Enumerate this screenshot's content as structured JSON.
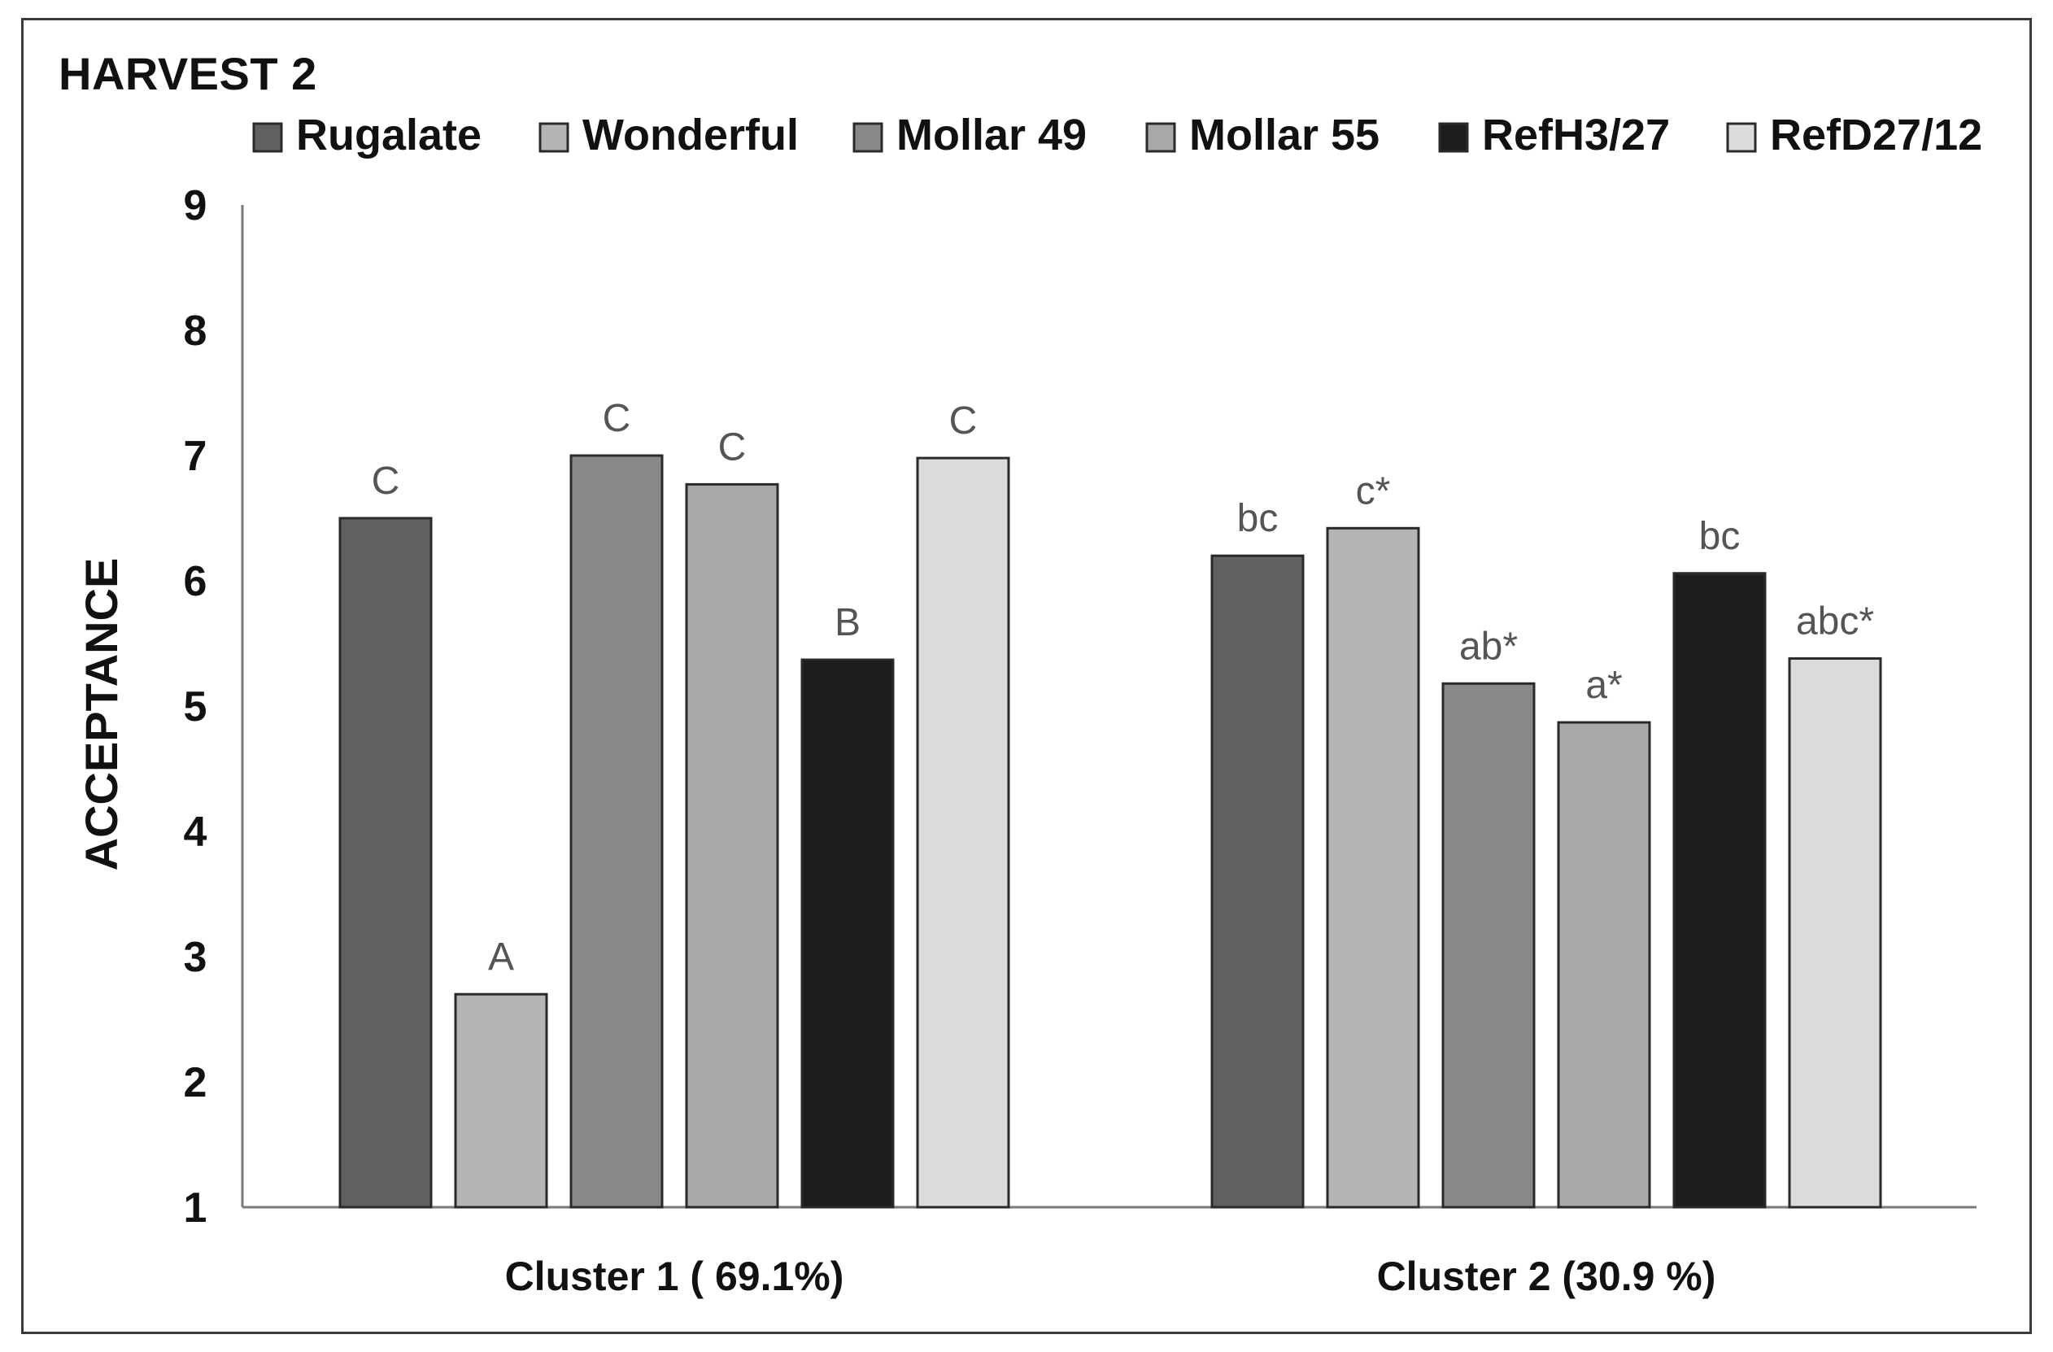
{
  "chart_data": {
    "type": "bar",
    "title": "HARVEST 2",
    "ylabel": "ACCEPTANCE",
    "xlabel": "",
    "ylim": [
      1,
      9
    ],
    "yticks": [
      1,
      2,
      3,
      4,
      5,
      6,
      7,
      8,
      9
    ],
    "categories": [
      "Cluster 1 ( 69.1%)",
      "Cluster 2 (30.9 %)"
    ],
    "legend_position": "top",
    "grid": false,
    "series": [
      {
        "name": "Rugalate",
        "color": "#606060",
        "values": [
          6.5,
          6.2
        ],
        "labels": [
          "C",
          "bc"
        ]
      },
      {
        "name": "Wonderful",
        "color": "#b4b4b4",
        "values": [
          2.7,
          6.42
        ],
        "labels": [
          "A",
          "c*"
        ]
      },
      {
        "name": "Mollar 49",
        "color": "#898989",
        "values": [
          7.0,
          5.18
        ],
        "labels": [
          "C",
          "ab*"
        ]
      },
      {
        "name": "Mollar 55",
        "color": "#a8a8a8",
        "values": [
          6.77,
          4.87
        ],
        "labels": [
          "C",
          "a*"
        ]
      },
      {
        "name": "RefH3/27",
        "color": "#1d1d1d",
        "values": [
          5.37,
          6.06
        ],
        "labels": [
          "B",
          "bc"
        ]
      },
      {
        "name": "RefD27/12",
        "color": "#dcdcdc",
        "values": [
          6.98,
          5.38
        ],
        "labels": [
          "C",
          "abc*"
        ]
      }
    ]
  }
}
